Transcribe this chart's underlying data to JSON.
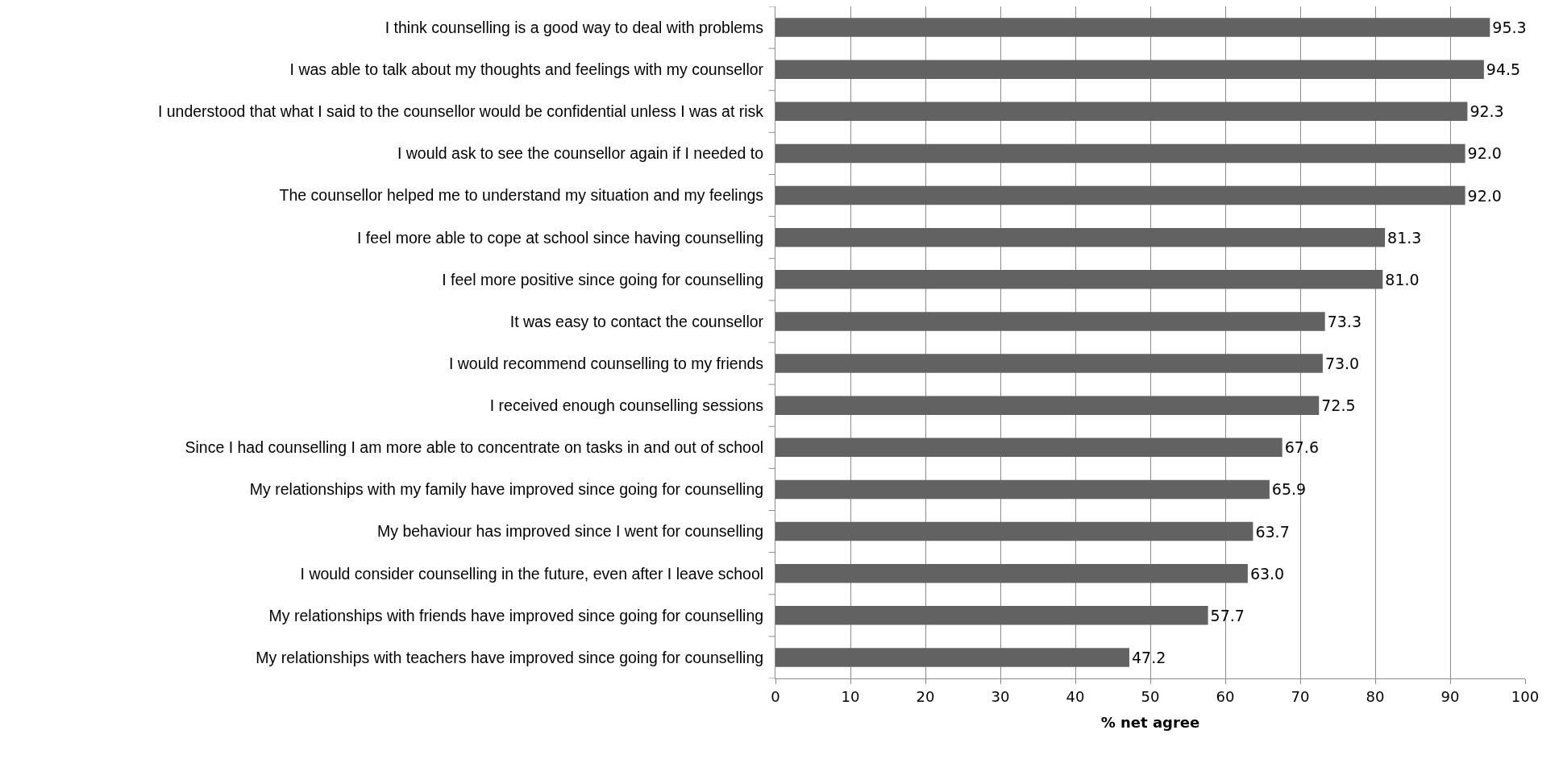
{
  "chart_data": {
    "type": "bar",
    "orientation": "horizontal",
    "xlabel": "% net agree",
    "categories": [
      "I think counselling is a good way to deal with problems",
      "I was able to talk about my thoughts and feelings with my counsellor",
      "I understood that what I said to the counsellor would be confidential unless I was at risk",
      "I would ask to see the counsellor again if I needed to",
      "The counsellor helped me to understand my situation and my feelings",
      "I feel more able to cope at school since having counselling",
      "I feel more positive since going for counselling",
      "It was easy to contact the counsellor",
      "I would recommend counselling to my friends",
      "I received enough counselling sessions",
      "Since I had counselling I am more able to concentrate on tasks in and out of school",
      "My relationships with my family have improved since going for counselling",
      "My behaviour has improved since I went for counselling",
      "I would consider counselling in the future, even after I leave school",
      "My relationships with friends have improved since going for counselling",
      "My relationships with teachers have improved since going for counselling"
    ],
    "values": [
      95.3,
      94.5,
      92.3,
      92.0,
      92.0,
      81.3,
      81.0,
      73.3,
      73.0,
      72.5,
      67.6,
      65.9,
      63.7,
      63.0,
      57.7,
      47.2
    ],
    "value_labels": [
      "95.3",
      "94.5",
      "92.3",
      "92.0",
      "92.0",
      "81.3",
      "81.0",
      "73.3",
      "73.0",
      "72.5",
      "67.6",
      "65.9",
      "63.7",
      "63.0",
      "57.7",
      "47.2"
    ],
    "color": "#626262",
    "xlim": [
      0,
      100
    ],
    "xticks": [
      0,
      10,
      20,
      30,
      40,
      50,
      60,
      70,
      80,
      90,
      100
    ],
    "grid": "x"
  }
}
